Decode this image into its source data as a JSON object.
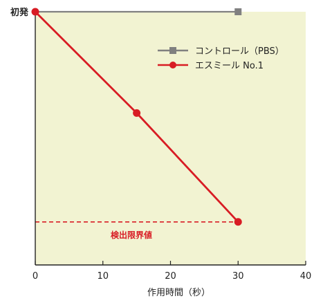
{
  "chart_data": {
    "type": "line",
    "xlabel": "作用時間（秒）",
    "ylabel_tick": "初発",
    "xlim": [
      0,
      40
    ],
    "x_ticks": [
      0,
      10,
      20,
      30,
      40
    ],
    "ylim": [
      0,
      1
    ],
    "grid": false,
    "legend_position": "top-right",
    "background_color": "#f2f3d2",
    "series": [
      {
        "name": "コントロール（PBS）",
        "color": "#808080",
        "marker": "square",
        "x": [
          0,
          30
        ],
        "y": [
          1.0,
          1.0
        ]
      },
      {
        "name": "エスミール No.1",
        "color": "#d81c24",
        "marker": "circle",
        "x": [
          0,
          15,
          30
        ],
        "y": [
          1.0,
          0.6,
          0.17
        ]
      }
    ],
    "annotations": [
      {
        "text": "検出限界値",
        "y": 0.17,
        "color": "#d81c24",
        "style": "dashed"
      }
    ]
  }
}
